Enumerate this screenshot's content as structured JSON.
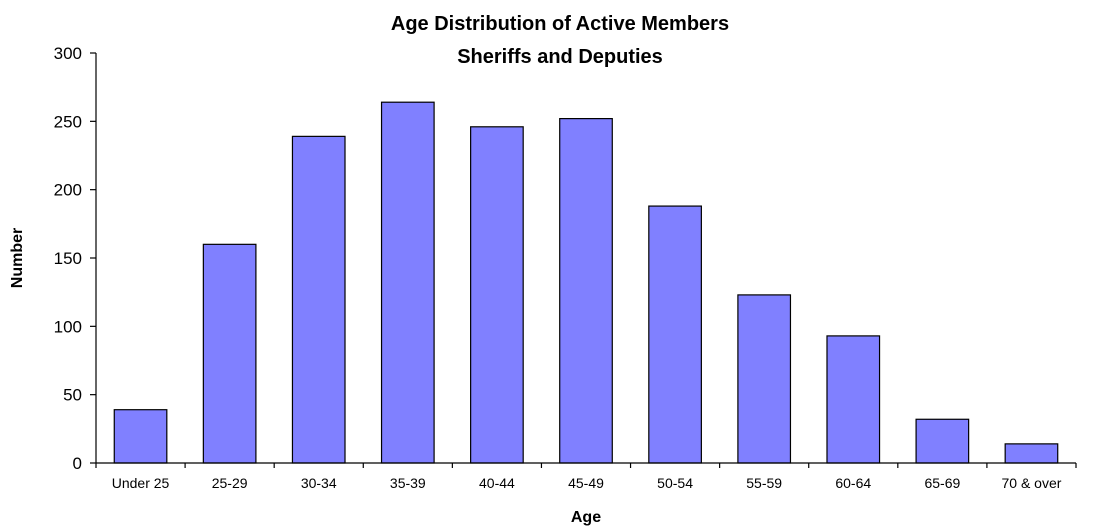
{
  "chart_data": {
    "type": "bar",
    "title": "Age Distribution of Active Members",
    "subtitle": "Sheriffs and Deputies",
    "xlabel": "Age",
    "ylabel": "Number",
    "categories": [
      "Under 25",
      "25-29",
      "30-34",
      "35-39",
      "40-44",
      "45-49",
      "50-54",
      "55-59",
      "60-64",
      "65-69",
      "70 & over"
    ],
    "values": [
      39,
      160,
      239,
      264,
      246,
      252,
      188,
      123,
      93,
      32,
      14
    ],
    "ylim": [
      0,
      300
    ],
    "yticks": [
      0,
      50,
      100,
      150,
      200,
      250,
      300
    ],
    "grid": false,
    "bar_color": "#8080FF",
    "edge_color": "#000000"
  }
}
